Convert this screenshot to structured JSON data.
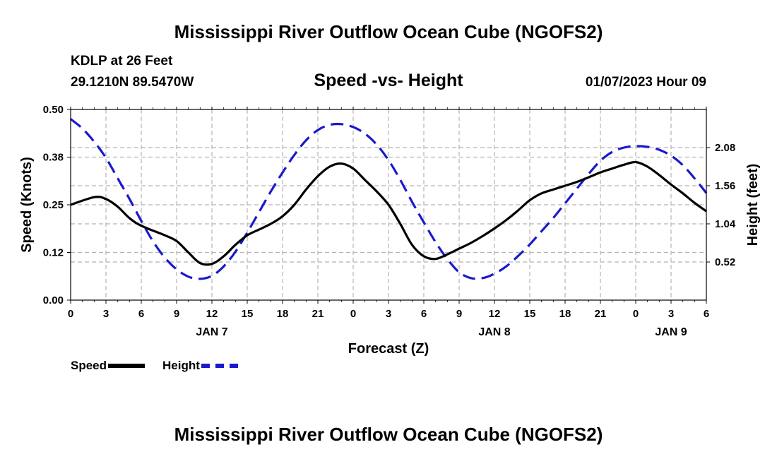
{
  "header": {
    "main_title": "Mississippi River Outflow Ocean Cube (NGOFS2)",
    "station": "KDLP at 26 Feet",
    "coords": "29.1210N  89.5470W",
    "subtitle": "Speed -vs- Height",
    "datetime": "01/07/2023 Hour 09",
    "footer_title": "Mississippi River Outflow Ocean Cube (NGOFS2)"
  },
  "legend": {
    "speed": "Speed",
    "height": "Height"
  },
  "colors": {
    "speed": "#000000",
    "height": "#1a1acc",
    "grid": "#b4b4b4"
  },
  "chart_data": {
    "type": "line",
    "xlabel": "Forecast (Z)",
    "ylabel_left": "Speed (Knots)",
    "ylabel_right": "Height (feet)",
    "x_range_hours": [
      0,
      54
    ],
    "x_tick_labels": [
      "0",
      "3",
      "6",
      "9",
      "12",
      "15",
      "18",
      "21",
      "0",
      "3",
      "6",
      "9",
      "12",
      "15",
      "18",
      "21",
      "0",
      "3",
      "6"
    ],
    "day_labels": [
      {
        "label": "JAN 7",
        "hour": 12
      },
      {
        "label": "JAN 8",
        "hour": 36
      },
      {
        "label": "JAN 9",
        "hour": 51
      }
    ],
    "ylim_left": [
      0,
      0.5
    ],
    "yticks_left": [
      "0.00",
      "0.12",
      "0.25",
      "0.38",
      "0.50"
    ],
    "ylim_right": [
      0,
      2.6
    ],
    "yticks_right": [
      {
        "value": 0.52,
        "label": "0.52"
      },
      {
        "value": 1.04,
        "label": "1.04"
      },
      {
        "value": 1.56,
        "label": "1.56"
      },
      {
        "value": 2.08,
        "label": "2.08"
      }
    ],
    "grid": true,
    "series": [
      {
        "name": "Speed",
        "axis": "left",
        "style": "solid",
        "x": [
          0,
          2,
          3,
          4,
          5,
          6,
          8,
          9,
          10,
          11,
          12,
          13,
          14,
          15,
          16,
          17,
          18,
          19,
          20,
          21,
          22,
          23,
          24,
          25,
          26,
          27,
          28,
          29,
          30,
          31,
          32,
          33,
          34,
          35,
          36,
          37,
          38,
          39,
          40,
          41,
          42,
          43,
          44,
          45,
          46,
          47,
          48,
          49,
          50,
          51,
          52,
          53,
          54
        ],
        "y": [
          0.25,
          0.27,
          0.265,
          0.245,
          0.215,
          0.195,
          0.17,
          0.155,
          0.125,
          0.097,
          0.095,
          0.115,
          0.145,
          0.17,
          0.185,
          0.2,
          0.22,
          0.25,
          0.29,
          0.325,
          0.35,
          0.358,
          0.345,
          0.315,
          0.285,
          0.25,
          0.2,
          0.145,
          0.115,
          0.108,
          0.12,
          0.135,
          0.15,
          0.168,
          0.188,
          0.21,
          0.235,
          0.262,
          0.28,
          0.29,
          0.3,
          0.31,
          0.322,
          0.335,
          0.345,
          0.355,
          0.362,
          0.35,
          0.328,
          0.303,
          0.28,
          0.255,
          0.233
        ]
      },
      {
        "name": "Height",
        "axis": "right",
        "style": "dashed",
        "x": [
          0,
          1,
          2,
          3,
          4,
          5,
          6,
          7,
          8,
          9,
          10,
          11,
          12,
          13,
          14,
          15,
          16,
          17,
          18,
          19,
          20,
          21,
          22,
          23,
          24,
          25,
          26,
          27,
          28,
          29,
          30,
          31,
          32,
          33,
          34,
          35,
          36,
          37,
          38,
          39,
          40,
          41,
          42,
          43,
          44,
          45,
          46,
          47,
          48,
          49,
          50,
          51,
          52,
          53,
          54
        ],
        "y": [
          2.47,
          2.34,
          2.16,
          1.94,
          1.66,
          1.38,
          1.08,
          0.8,
          0.58,
          0.42,
          0.32,
          0.29,
          0.33,
          0.46,
          0.66,
          0.92,
          1.2,
          1.48,
          1.74,
          1.98,
          2.18,
          2.32,
          2.39,
          2.4,
          2.36,
          2.27,
          2.12,
          1.91,
          1.64,
          1.34,
          1.06,
          0.79,
          0.56,
          0.38,
          0.3,
          0.3,
          0.36,
          0.46,
          0.6,
          0.76,
          0.94,
          1.12,
          1.32,
          1.52,
          1.72,
          1.9,
          2.02,
          2.08,
          2.1,
          2.09,
          2.05,
          1.97,
          1.84,
          1.66,
          1.46
        ]
      }
    ]
  }
}
